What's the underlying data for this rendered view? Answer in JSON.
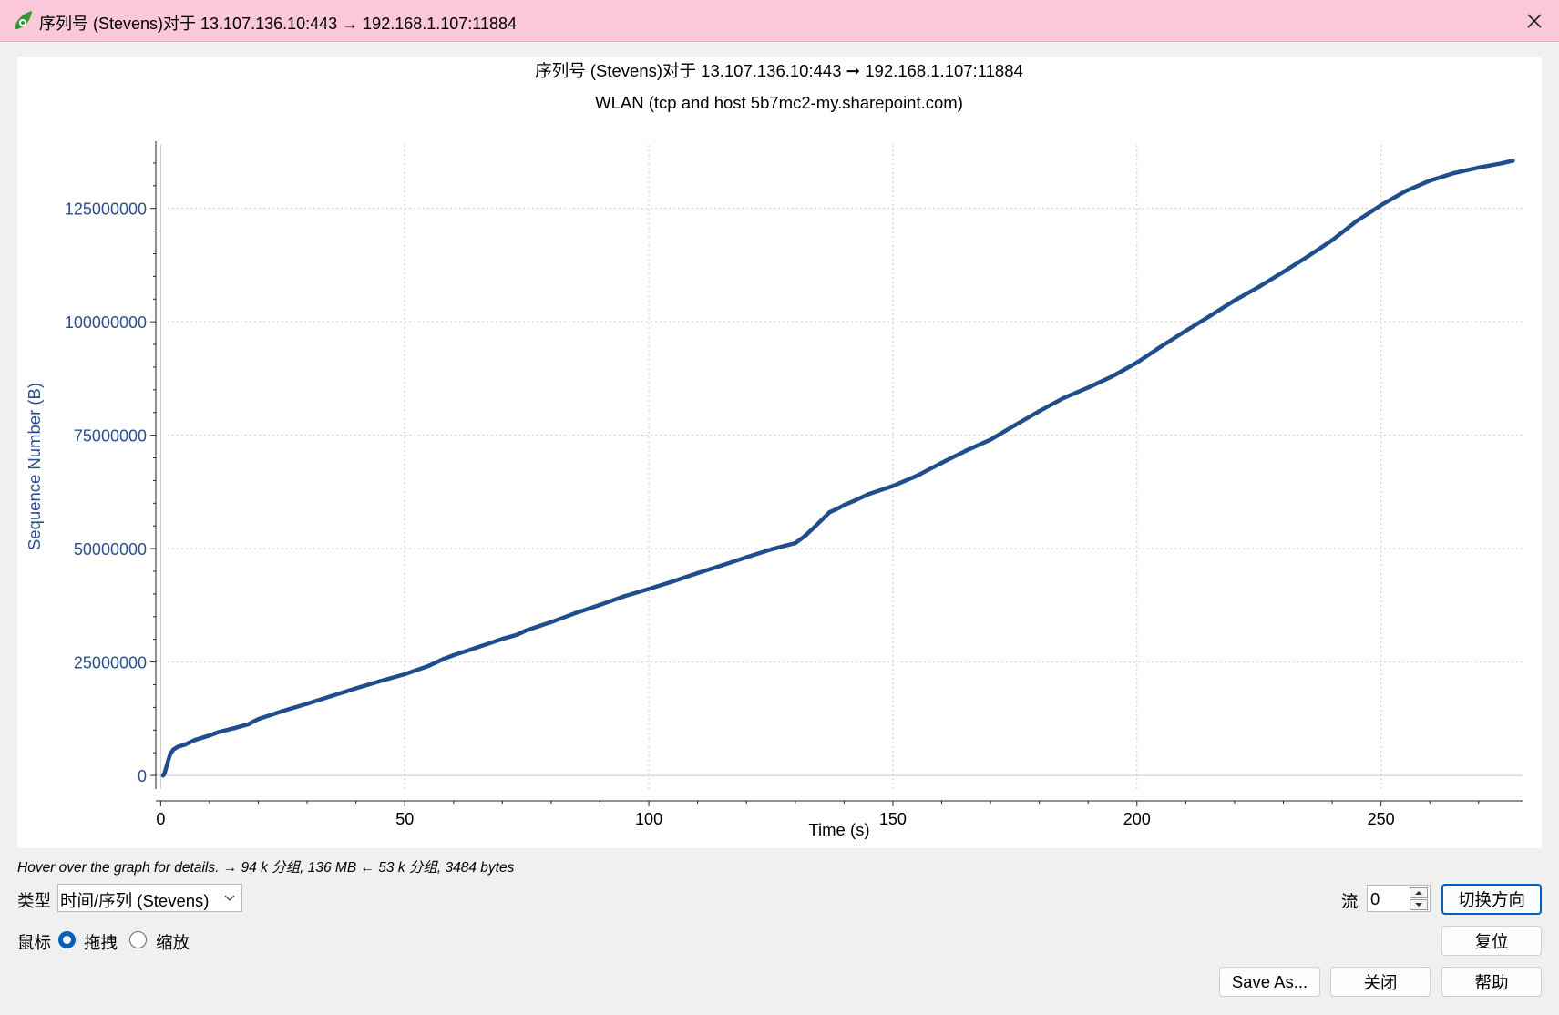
{
  "window": {
    "title": "序列号 (Stevens)对于 13.107.136.10:443 → 192.168.1.107:11884",
    "icon": "wireshark-fin-icon",
    "close_icon": "close-icon"
  },
  "chart_data": {
    "type": "scatter",
    "title": "序列号 (Stevens)对于 13.107.136.10:443 ➞ 192.168.1.107:11884",
    "subtitle": "WLAN (tcp and host 5b7mc2-my.sharepoint.com)",
    "xlabel": "Time (s)",
    "ylabel": "Sequence Number (B)",
    "xlim": [
      -1,
      279
    ],
    "ylim": [
      -3000000,
      139000000
    ],
    "xticks": [
      0,
      50,
      100,
      150,
      200,
      250
    ],
    "yticks": [
      0,
      25000000,
      50000000,
      75000000,
      100000000,
      125000000
    ],
    "xtick_labels": [
      "0",
      "50",
      "100",
      "150",
      "200",
      "250"
    ],
    "ytick_labels": [
      "0",
      "25000000",
      "50000000",
      "75000000",
      "100000000",
      "125000000"
    ],
    "grid": true,
    "color": "#1f4e8c",
    "series": [
      {
        "x": [
          0.5,
          0.8,
          1.2,
          1.6,
          2.0,
          2.6,
          3.5,
          5.0,
          7.0,
          10.0,
          12.0,
          15.0,
          18.0,
          20.0,
          25.0,
          30.0,
          35.0,
          40.0,
          45.0,
          50.0,
          55.0,
          58.0,
          60.0,
          65.0,
          70.0,
          73.0,
          75.0,
          80.0,
          85.0,
          90.0,
          95.0,
          100.0,
          105.0,
          110.0,
          115.0,
          120.0,
          125.0,
          130.0,
          132.0,
          134.0,
          137.0,
          139.0,
          140.0,
          142.0,
          145.0,
          150.0,
          155.0,
          160.0,
          165.0,
          170.0,
          175.0,
          180.0,
          185.0,
          190.0,
          195.0,
          200.0,
          205.0,
          210.0,
          215.0,
          220.0,
          225.0,
          230.0,
          235.0,
          240.0,
          245.0,
          250.0,
          255.0,
          260.0,
          265.0,
          270.0,
          275.0,
          277.0
        ],
        "y": [
          0,
          500000,
          2000000,
          3500000,
          4800000,
          5700000,
          6300000,
          6800000,
          7800000,
          8800000,
          9600000,
          10400000,
          11300000,
          12400000,
          14200000,
          15800000,
          17500000,
          19200000,
          20800000,
          22300000,
          24200000,
          25700000,
          26500000,
          28300000,
          30100000,
          31000000,
          32000000,
          33800000,
          35800000,
          37600000,
          39500000,
          41100000,
          42800000,
          44600000,
          46300000,
          48100000,
          49800000,
          51200000,
          52800000,
          54800000,
          58000000,
          59000000,
          59600000,
          60500000,
          62000000,
          63800000,
          66100000,
          68900000,
          71600000,
          74000000,
          77200000,
          80300000,
          83200000,
          85500000,
          88000000,
          91000000,
          94600000,
          98000000,
          101300000,
          104700000,
          107700000,
          111000000,
          114400000,
          118000000,
          122200000,
          125700000,
          128800000,
          131100000,
          132800000,
          134000000,
          135000000,
          135500000
        ]
      }
    ]
  },
  "status": {
    "hover_text": "Hover over the graph for details. → 94 k 分组, 136 MB ← 53 k 分组, 3484 bytes"
  },
  "controls": {
    "type_label": "类型",
    "type_value": "时间/序列 (Stevens)",
    "mouse_label": "鼠标",
    "mouse_drag_label": "拖拽",
    "mouse_zoom_label": "缩放",
    "mouse_selected": "drag",
    "stream_label": "流",
    "stream_value": "0",
    "switch_direction": "切换方向",
    "reset": "复位",
    "save_as": "Save As...",
    "close": "关闭",
    "help": "帮助"
  }
}
